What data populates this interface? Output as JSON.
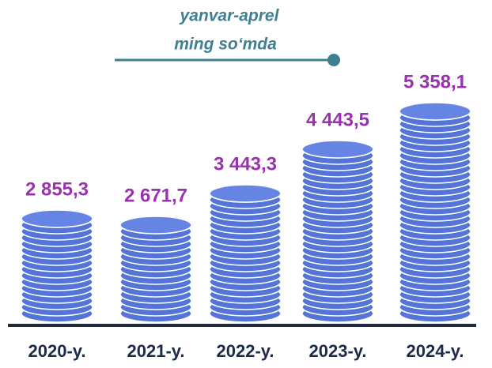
{
  "chart_data": {
    "type": "bar",
    "subtitle": [
      "yanvar-aprel",
      "ming so‘mda"
    ],
    "categories": [
      "2020-y.",
      "2021-y.",
      "2022-y.",
      "2023-y.",
      "2024-y."
    ],
    "values": [
      2855.3,
      2671.7,
      3443.3,
      4443.5,
      5358.1
    ],
    "value_labels": [
      "2 855,3",
      "2 671,7",
      "3 443,3",
      "4 443,5",
      "5 358,1"
    ],
    "color": "#5574d8"
  }
}
